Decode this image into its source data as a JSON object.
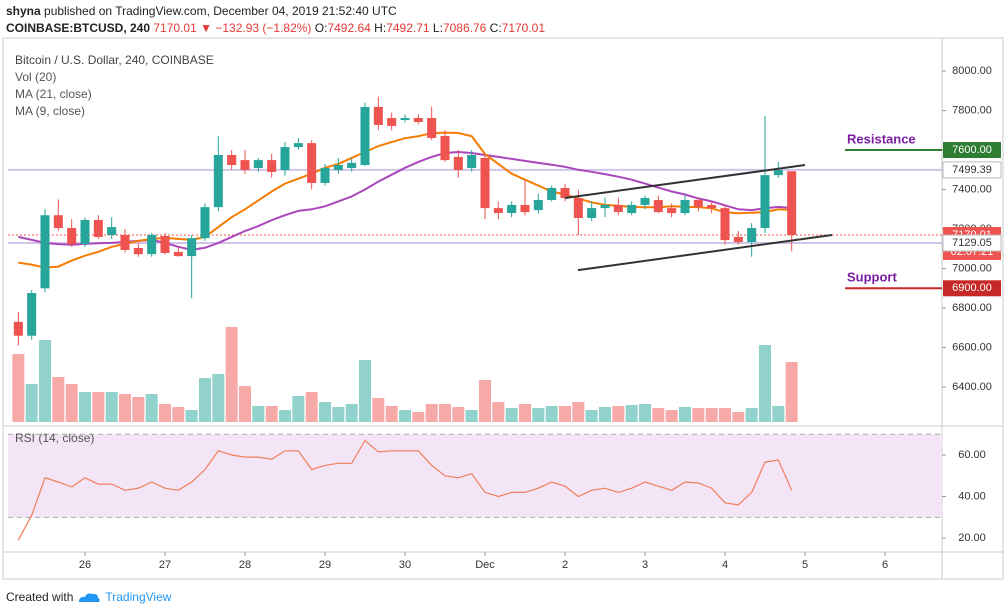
{
  "header": {
    "author": "shyna",
    "published": "published on TradingView.com, December 04, 2019 21:52:40 UTC",
    "symbol": "COINBASE:BTCUSD, 240",
    "last": "7170.01",
    "arrow": "▼",
    "change": "−132.93 (−1.82%)",
    "ohlc": [
      {
        "label": "O:",
        "value": "7492.64"
      },
      {
        "label": "H:",
        "value": "7492.71"
      },
      {
        "label": "L:",
        "value": "7086.76"
      },
      {
        "label": "C:",
        "value": "7170.01"
      }
    ]
  },
  "footer": {
    "text": "Created with",
    "brand": "TradingView"
  },
  "chart_data": [
    {
      "type": "candlestick",
      "title": "Bitcoin / U.S. Dollar, 240, COINBASE",
      "up_color": "#26a69a",
      "down_color": "#ef5350",
      "x": [
        4,
        8,
        12,
        16,
        20,
        24,
        28,
        32,
        36,
        40,
        44,
        48,
        52,
        56,
        60,
        64,
        68,
        72,
        76,
        80,
        84,
        88,
        92,
        96,
        100,
        104,
        108,
        112,
        116,
        120,
        124,
        128,
        132,
        136,
        140,
        144,
        148,
        152,
        156,
        160,
        164,
        168,
        172,
        176,
        180,
        184,
        188,
        192,
        196,
        200,
        204,
        208,
        212,
        216,
        220,
        224,
        228,
        232,
        236
      ],
      "open": [
        6730,
        6660,
        6900,
        7270,
        7205,
        7124,
        7246,
        7170,
        7170,
        7104,
        7073,
        7165,
        7084,
        7063,
        7154,
        7311,
        7575,
        7549,
        7509,
        7549,
        7499,
        7615,
        7635,
        7433,
        7499,
        7509,
        7524,
        7818,
        7762,
        7752,
        7762,
        7762,
        7671,
        7565,
        7509,
        7560,
        7306,
        7281,
        7322,
        7296,
        7347,
        7408,
        7357,
        7256,
        7306,
        7322,
        7281,
        7322,
        7347,
        7306,
        7281,
        7347,
        7322,
        7306,
        7160,
        7134,
        7205,
        7473,
        7492.64
      ],
      "high": [
        6780,
        6890,
        7300,
        7350,
        7250,
        7260,
        7270,
        7260,
        7200,
        7130,
        7180,
        7180,
        7110,
        7170,
        7330,
        7670,
        7600,
        7600,
        7560,
        7580,
        7640,
        7660,
        7650,
        7530,
        7560,
        7560,
        7840,
        7870,
        7790,
        7780,
        7780,
        7820,
        7700,
        7600,
        7600,
        7580,
        7340,
        7340,
        7450,
        7380,
        7420,
        7430,
        7400,
        7340,
        7360,
        7360,
        7340,
        7370,
        7370,
        7330,
        7370,
        7360,
        7340,
        7320,
        7190,
        7230,
        7772,
        7540,
        7492.71
      ],
      "low": [
        6610,
        6640,
        6880,
        7190,
        7110,
        7110,
        7150,
        7150,
        7080,
        7060,
        7060,
        7070,
        7060,
        6850,
        7140,
        7290,
        7500,
        7480,
        7490,
        7460,
        7470,
        7600,
        7400,
        7420,
        7480,
        7490,
        7520,
        7700,
        7700,
        7740,
        7730,
        7650,
        7540,
        7460,
        7490,
        7250,
        7250,
        7260,
        7270,
        7280,
        7340,
        7340,
        7170,
        7240,
        7260,
        7270,
        7270,
        7300,
        7280,
        7260,
        7270,
        7290,
        7280,
        7120,
        7120,
        7060,
        7180,
        7460,
        7086.76
      ],
      "close": [
        6660,
        6876,
        7270,
        7205,
        7124,
        7246,
        7160,
        7210,
        7094,
        7073,
        7170,
        7079,
        7063,
        7154,
        7311,
        7575,
        7524,
        7499,
        7549,
        7489,
        7615,
        7635,
        7433,
        7509,
        7524,
        7535,
        7818,
        7727,
        7722,
        7762,
        7742,
        7661,
        7549,
        7499,
        7575,
        7306,
        7281,
        7322,
        7286,
        7347,
        7408,
        7357,
        7256,
        7306,
        7322,
        7286,
        7322,
        7357,
        7286,
        7281,
        7347,
        7311,
        7306,
        7144,
        7134,
        7205,
        7473,
        7499,
        7170.01
      ],
      "volume": {
        "name": "Vol (20)",
        "values": [
          68,
          38,
          82,
          45,
          38,
          30,
          30,
          30,
          28,
          25,
          28,
          18,
          15,
          12,
          44,
          48,
          95,
          36,
          16,
          16,
          12,
          26,
          30,
          20,
          15,
          18,
          62,
          24,
          16,
          12,
          10,
          18,
          18,
          15,
          12,
          42,
          20,
          14,
          18,
          14,
          16,
          16,
          20,
          12,
          15,
          16,
          17,
          18,
          14,
          12,
          15,
          14,
          14,
          14,
          10,
          14,
          77,
          16,
          60
        ]
      },
      "series": [
        {
          "name": "MA (21, close)",
          "color": "#ab47bc",
          "values": [
            7160,
            7145,
            7130,
            7124,
            7120,
            7125,
            7128,
            7130,
            7135,
            7140,
            7145,
            7130,
            7110,
            7095,
            7105,
            7130,
            7160,
            7190,
            7215,
            7245,
            7270,
            7292,
            7300,
            7315,
            7340,
            7365,
            7400,
            7440,
            7475,
            7510,
            7540,
            7565,
            7585,
            7590,
            7585,
            7575,
            7565,
            7555,
            7545,
            7535,
            7525,
            7515,
            7500,
            7490,
            7478,
            7465,
            7450,
            7430,
            7410,
            7390,
            7375,
            7355,
            7340,
            7320,
            7300,
            7296,
            7305,
            7312,
            7306
          ]
        },
        {
          "name": "MA (9, close)",
          "color": "#f57c00",
          "values": [
            7030,
            7020,
            7005,
            7010,
            7040,
            7065,
            7085,
            7110,
            7125,
            7140,
            7150,
            7155,
            7150,
            7145,
            7160,
            7210,
            7260,
            7300,
            7345,
            7390,
            7430,
            7455,
            7480,
            7510,
            7530,
            7560,
            7590,
            7620,
            7640,
            7660,
            7670,
            7685,
            7688,
            7686,
            7670,
            7580,
            7530,
            7480,
            7450,
            7420,
            7390,
            7375,
            7355,
            7335,
            7322,
            7318,
            7312,
            7310,
            7310,
            7315,
            7312,
            7311,
            7305,
            7285,
            7280,
            7282,
            7286,
            7300,
            7296
          ]
        }
      ],
      "xlim": [
        0.9,
        281.1
      ],
      "xticks": [
        {
          "value": 24,
          "label": "26"
        },
        {
          "value": 48,
          "label": "27"
        },
        {
          "value": 72,
          "label": "28"
        },
        {
          "value": 96,
          "label": "29"
        },
        {
          "value": 120,
          "label": "30"
        },
        {
          "value": 144,
          "label": "Dec"
        },
        {
          "value": 168,
          "label": "2"
        },
        {
          "value": 192,
          "label": "3"
        },
        {
          "value": 216,
          "label": "4"
        },
        {
          "value": 240,
          "label": "5"
        },
        {
          "value": 264,
          "label": "6"
        }
      ],
      "ylim": [
        6208,
        8157
      ],
      "yticks": [
        {
          "value": 6400,
          "label": "6400.00"
        },
        {
          "value": 6600,
          "label": "6600.00"
        },
        {
          "value": 6800,
          "label": "6800.00"
        },
        {
          "value": 7000,
          "label": "7000.00"
        },
        {
          "value": 7200,
          "label": "7200.00"
        },
        {
          "value": 7400,
          "label": "7400.00"
        },
        {
          "value": 7600,
          "label": "7600.00"
        },
        {
          "value": 7800,
          "label": "7800.00"
        },
        {
          "value": 8000,
          "label": "8000.00"
        }
      ],
      "levels": [
        {
          "value": 7600,
          "label": "7600.00",
          "color": "#2e7d32",
          "line": "short",
          "text": "Resistance"
        },
        {
          "value": 7499.39,
          "color": "#d1c4e9",
          "line": "full"
        },
        {
          "value": 7170.01,
          "color": "#ef5350",
          "line": "dashed",
          "countdown": "02:07:21"
        },
        {
          "value": 7129.05,
          "color": "#d1c4e9",
          "line": "full"
        },
        {
          "value": 6900,
          "label": "6900.00",
          "color": "#c62828",
          "line": "short",
          "text": "Support"
        }
      ],
      "trendlines": [
        {
          "x": [
            168,
            240
          ],
          "y": [
            7357,
            7524
          ]
        },
        {
          "x": [
            171.9,
            248.1
          ],
          "y": [
            6992,
            7170
          ]
        }
      ]
    },
    {
      "type": "line",
      "title": "RSI (14, close)",
      "color": "#ef7f5a",
      "values": [
        19,
        31,
        49,
        47,
        44.6,
        49,
        46,
        46,
        43,
        44,
        47,
        44,
        43,
        47,
        53,
        62,
        60,
        59,
        59,
        58,
        62,
        62,
        53,
        55,
        56,
        56,
        67,
        61.5,
        62,
        62,
        62,
        55,
        50,
        49,
        51,
        42,
        40,
        42,
        42,
        44,
        47,
        45,
        40,
        43,
        44,
        42,
        44,
        47,
        45,
        43,
        47,
        46.5,
        44,
        37,
        36,
        42,
        56.6,
        57.6,
        43
      ],
      "band": [
        30,
        70
      ],
      "band_color": "#f3e5f5",
      "ylim": [
        13.3,
        73
      ],
      "yticks": [
        {
          "value": 20,
          "label": "20.00"
        },
        {
          "value": 40,
          "label": "40.00"
        },
        {
          "value": 60,
          "label": "60.00"
        }
      ]
    }
  ]
}
